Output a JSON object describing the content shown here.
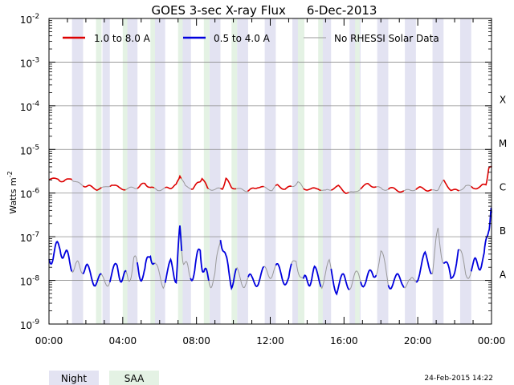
{
  "chart_data": {
    "type": "line",
    "title": "GOES 3-sec X-ray Flux",
    "date": "6-Dec-2013",
    "ylabel": "Watts m",
    "ylabel_exp": "-2",
    "y_scale": "log",
    "ylim_exponents": [
      -9,
      -2
    ],
    "y_tick_labels": [
      {
        "exp": -2,
        "base": "10",
        "sup": "-2"
      },
      {
        "exp": -3,
        "base": "10",
        "sup": "-3"
      },
      {
        "exp": -4,
        "base": "10",
        "sup": "-4"
      },
      {
        "exp": -5,
        "base": "10",
        "sup": "-5"
      },
      {
        "exp": -6,
        "base": "10",
        "sup": "-6"
      },
      {
        "exp": -7,
        "base": "10",
        "sup": "-7"
      },
      {
        "exp": -8,
        "base": "10",
        "sup": "-8"
      },
      {
        "exp": -9,
        "base": "10",
        "sup": "-9"
      }
    ],
    "x_range_hours": [
      0,
      24
    ],
    "x_tick_labels": [
      {
        "hour": 0,
        "label": "00:00"
      },
      {
        "hour": 4,
        "label": "04:00"
      },
      {
        "hour": 8,
        "label": "08:00"
      },
      {
        "hour": 12,
        "label": "12:00"
      },
      {
        "hour": 16,
        "label": "16:00"
      },
      {
        "hour": 20,
        "label": "20:00"
      },
      {
        "hour": 24,
        "label": "00:00"
      }
    ],
    "flare_classes": [
      {
        "exp": -4,
        "label": "X"
      },
      {
        "exp": -5,
        "label": "M"
      },
      {
        "exp": -6,
        "label": "C"
      },
      {
        "exp": -7,
        "label": "B"
      },
      {
        "exp": -8,
        "label": "A"
      }
    ],
    "legend": [
      {
        "label": "1.0 to 8.0 A",
        "color": "#dd0000"
      },
      {
        "label": "0.5 to 4.0 A",
        "color": "#0000dd"
      },
      {
        "label": "No RHESSI Solar Data",
        "color": "#999999"
      }
    ],
    "shading_legend": [
      {
        "label": "Night",
        "color": "#e3e3f2"
      },
      {
        "label": "SAA",
        "color": "#e4f2e4"
      }
    ],
    "night_intervals_hours": [
      [
        1.25,
        1.85
      ],
      [
        2.9,
        3.3
      ],
      [
        4.2,
        4.8
      ],
      [
        5.75,
        6.3
      ],
      [
        7.2,
        7.7
      ],
      [
        8.7,
        9.3
      ],
      [
        10.2,
        10.8
      ],
      [
        11.7,
        12.3
      ],
      [
        13.2,
        13.8
      ],
      [
        14.8,
        15.3
      ],
      [
        16.3,
        16.9
      ],
      [
        17.8,
        18.4
      ],
      [
        19.3,
        19.9
      ],
      [
        20.8,
        21.4
      ],
      [
        22.3,
        22.9
      ]
    ],
    "saa_intervals_hours": [
      [
        2.55,
        2.85
      ],
      [
        4.0,
        4.25
      ],
      [
        5.5,
        5.75
      ],
      [
        7.0,
        7.25
      ],
      [
        8.4,
        8.7
      ],
      [
        9.9,
        10.2
      ],
      [
        13.5,
        13.85
      ],
      [
        14.6,
        14.85
      ],
      [
        16.6,
        16.85
      ]
    ],
    "series": [
      {
        "name": "1.0 to 8.0 A",
        "color_key": "red_gray",
        "x_hours": [
          0,
          0.5,
          0.8,
          1.2,
          1.5,
          1.9,
          2.2,
          2.6,
          3.0,
          3.4,
          3.8,
          4.2,
          4.6,
          4.9,
          5.2,
          5.5,
          5.9,
          6.3,
          6.6,
          6.9,
          7.1,
          7.4,
          7.8,
          8.1,
          8.3,
          8.6,
          9.0,
          9.4,
          9.6,
          9.9,
          10.3,
          10.7,
          11.0,
          11.3,
          11.7,
          12.1,
          12.4,
          12.8,
          13.2,
          13.5,
          13.8,
          14.2,
          14.6,
          15.0,
          15.3,
          15.7,
          16.1,
          16.5,
          16.9,
          17.3,
          17.7,
          18.1,
          18.5,
          18.9,
          19.3,
          19.7,
          20.1,
          20.5,
          20.8,
          21.1,
          21.4,
          21.8,
          22.2,
          22.6,
          23.0,
          23.4,
          23.7,
          23.85,
          24.0
        ],
        "values": [
          2e-06,
          2.1e-06,
          1.8e-06,
          2.2e-06,
          1.7e-06,
          1.5e-06,
          1.4e-06,
          1.25e-06,
          1.3e-06,
          1.6e-06,
          1.3e-06,
          1.25e-06,
          1.3e-06,
          1.4e-06,
          1.7e-06,
          1.3e-06,
          1.2e-06,
          1.25e-06,
          1.35e-06,
          1.5e-06,
          2.6e-06,
          1.4e-06,
          1.3e-06,
          1.7e-06,
          2.2e-06,
          1.3e-06,
          1.2e-06,
          1.25e-06,
          2.1e-06,
          1.4e-06,
          1.2e-06,
          1.15e-06,
          1.2e-06,
          1.4e-06,
          1.3e-06,
          1.2e-06,
          1.5e-06,
          1.25e-06,
          1.4e-06,
          1.8e-06,
          1.3e-06,
          1.2e-06,
          1.3e-06,
          1.1e-06,
          1.25e-06,
          1.4e-06,
          1.05e-06,
          1e-06,
          1.3e-06,
          1.6e-06,
          1.4e-06,
          1.2e-06,
          1.3e-06,
          1.15e-06,
          1.1e-06,
          1.2e-06,
          1.3e-06,
          1.2e-06,
          1.1e-06,
          1.25e-06,
          1.9e-06,
          1.2e-06,
          1.1e-06,
          1.5e-06,
          1.3e-06,
          1.4e-06,
          1.6e-06,
          3.5e-06,
          4.2e-06
        ]
      },
      {
        "name": "0.5 to 4.0 A",
        "color_key": "blue_gray",
        "x_hours": [
          0,
          0.3,
          0.6,
          0.9,
          1.2,
          1.5,
          1.8,
          2.1,
          2.5,
          2.9,
          3.3,
          3.7,
          4.0,
          4.3,
          4.6,
          4.9,
          5.2,
          5.5,
          5.8,
          6.2,
          6.6,
          6.9,
          7.1,
          7.3,
          7.6,
          7.9,
          8.2,
          8.4,
          8.7,
          9.0,
          9.3,
          9.6,
          9.9,
          10.2,
          10.6,
          11.0,
          11.4,
          11.8,
          12.2,
          12.6,
          13.0,
          13.4,
          13.8,
          14.1,
          14.4,
          14.8,
          15.2,
          15.6,
          16.0,
          16.4,
          16.8,
          17.2,
          17.6,
          18.0,
          18.4,
          18.8,
          19.2,
          19.6,
          20.0,
          20.4,
          20.8,
          21.1,
          21.4,
          21.8,
          22.2,
          22.6,
          23.0,
          23.3,
          23.6,
          23.85,
          24.0
        ],
        "values": [
          3e-08,
          4.5e-08,
          6e-08,
          3.5e-08,
          2.5e-08,
          1.8e-08,
          2.2e-08,
          1.5e-08,
          1.1e-08,
          9e-09,
          1.2e-08,
          1.8e-08,
          1.2e-08,
          1e-08,
          3e-08,
          1.5e-08,
          1.4e-08,
          5e-08,
          1.6e-08,
          1e-08,
          2e-08,
          1.3e-08,
          1.3e-07,
          3e-08,
          1.2e-08,
          1.8e-08,
          5e-08,
          1.4e-08,
          1e-08,
          1.1e-08,
          1.2e-07,
          2.5e-08,
          1e-08,
          1.3e-08,
          1e-08,
          9e-09,
          1.2e-08,
          1.5e-08,
          1.8e-08,
          1.4e-08,
          1e-08,
          3.5e-08,
          8e-09,
          1.1e-08,
          1.4e-08,
          1e-08,
          2e-08,
          7e-09,
          1e-08,
          9e-09,
          1.2e-08,
          1e-08,
          1.3e-08,
          4e-08,
          1e-08,
          9e-09,
          1.1e-08,
          7e-09,
          1.5e-08,
          3e-08,
          2e-08,
          1.2e-07,
          3e-08,
          1e-08,
          5e-08,
          1.5e-08,
          2e-08,
          2.5e-08,
          3e-08,
          2e-07,
          3.5e-07
        ]
      }
    ]
  },
  "footer": {
    "timestamp": "24-Feb-2015 14:22"
  }
}
